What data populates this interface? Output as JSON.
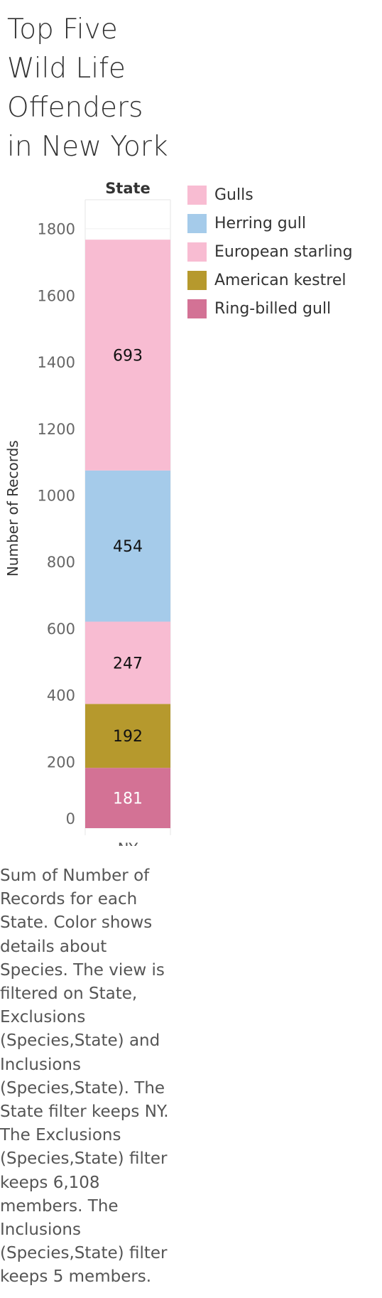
{
  "title_lines": [
    "Top Five",
    "Wild Life",
    "Offenders",
    "in New York"
  ],
  "legend": {
    "items": [
      {
        "label": "Gulls",
        "color": "#f8bcd2"
      },
      {
        "label": "Herring gull",
        "color": "#a5cbea"
      },
      {
        "label": "European starling",
        "color": "#f8bcd2"
      },
      {
        "label": "American kestrel",
        "color": "#b6992d"
      },
      {
        "label": "Ring-billed gull",
        "color": "#d37295"
      }
    ]
  },
  "caption": "Sum of Number of Records for each State.  Color shows details about Species. The view is filtered on State, Exclusions (Species,State) and Inclusions (Species,State). The State filter keeps NY. The Exclusions (Species,State) filter keeps 6,108 members. The Inclusions (Species,State) filter keeps 5 members.",
  "chart_data": {
    "type": "bar",
    "stacked": true,
    "column_header": "State",
    "categories": [
      "NY"
    ],
    "ylabel": "Number of Records",
    "ylim": [
      0,
      1850
    ],
    "yticks": [
      0,
      200,
      400,
      600,
      800,
      1000,
      1200,
      1400,
      1600,
      1800
    ],
    "series": [
      {
        "name": "Ring-billed gull",
        "values": [
          181
        ],
        "color": "#d37295",
        "label_color": "#ffffff"
      },
      {
        "name": "American kestrel",
        "values": [
          192
        ],
        "color": "#b6992d",
        "label_color": "#111111"
      },
      {
        "name": "European starling",
        "values": [
          247
        ],
        "color": "#f8bcd2",
        "label_color": "#111111"
      },
      {
        "name": "Herring gull",
        "values": [
          454
        ],
        "color": "#a5cbea",
        "label_color": "#111111"
      },
      {
        "name": "Gulls",
        "values": [
          693
        ],
        "color": "#f8bcd2",
        "label_color": "#111111"
      }
    ]
  }
}
